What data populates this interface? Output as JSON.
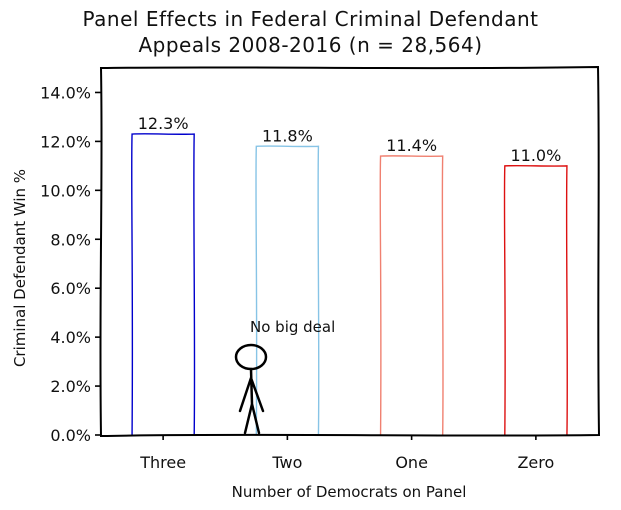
{
  "chart_data": {
    "type": "bar",
    "title_lines": [
      "Panel Effects in Federal Criminal Defendant",
      "Appeals 2008-2016 (n = 28,564)"
    ],
    "xlabel": "Number of Democrats on Panel",
    "ylabel": "Criminal Defendant Win %",
    "categories": [
      "Three",
      "Two",
      "One",
      "Zero"
    ],
    "values": [
      12.3,
      11.8,
      11.4,
      11.0
    ],
    "data_labels": [
      "12.3%",
      "11.8%",
      "11.4%",
      "11.0%"
    ],
    "bar_colors": [
      "#0000cc",
      "#87c4e6",
      "#f08070",
      "#dd1111"
    ],
    "ylim": [
      0,
      15
    ],
    "yticks": [
      0,
      2,
      4,
      6,
      8,
      10,
      12,
      14
    ],
    "ytick_labels": [
      "0.0%",
      "2.0%",
      "4.0%",
      "6.0%",
      "8.0%",
      "10.0%",
      "12.0%",
      "14.0%"
    ],
    "annotation": "No big deal",
    "grid": false,
    "legend": "none"
  }
}
